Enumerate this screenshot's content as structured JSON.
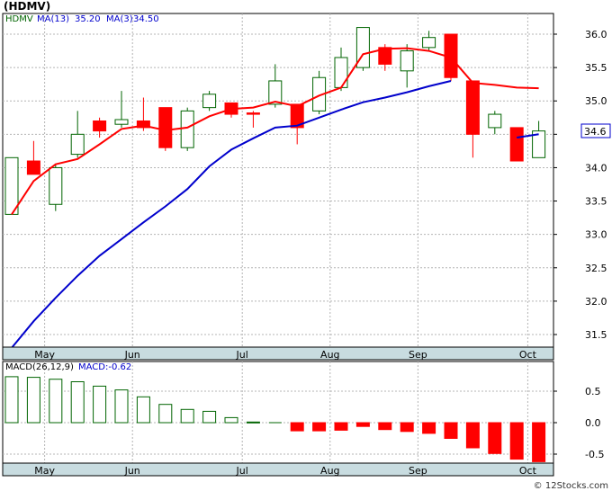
{
  "header": {
    "title": "(HDMV)"
  },
  "footer": {
    "credit": "© 12Stocks.com"
  },
  "colors": {
    "up": "#006400",
    "down": "#ff0000",
    "ma_slow": "#0000cc",
    "ma_fast": "#ff0000",
    "grid": "#b4b4b4",
    "axis_bar": "#c8dce0",
    "ticker": "#006400",
    "legend_blue": "#0000cc"
  },
  "chart_data": [
    {
      "type": "candlestick",
      "title": "(HDMV)",
      "legend": {
        "ticker": "HDMV",
        "ma_slow_label": "MA(13)",
        "ma_slow_value": "35.20",
        "ma_fast_label": "MA(3)",
        "ma_fast_value": "34.50"
      },
      "last_price_label": "34.6",
      "ylim": [
        31.2,
        36.4
      ],
      "yticks": [
        "31.5",
        "32.0",
        "32.5",
        "33.0",
        "33.5",
        "34.0",
        "34.5",
        "35.0",
        "35.5",
        "36.0"
      ],
      "month_labels": [
        "May",
        "Jun",
        "Jul",
        "Aug",
        "Sep",
        "Oct"
      ],
      "month_positions": [
        1.5,
        5.5,
        10.5,
        14.5,
        18.5,
        23.5
      ],
      "candles": [
        {
          "i": 0,
          "o": 33.3,
          "h": 34.15,
          "l": 33.3,
          "c": 34.15
        },
        {
          "i": 1,
          "o": 34.1,
          "h": 34.4,
          "l": 33.95,
          "c": 33.9
        },
        {
          "i": 2,
          "o": 33.45,
          "h": 34.05,
          "l": 33.35,
          "c": 34.0
        },
        {
          "i": 3,
          "o": 34.2,
          "h": 34.85,
          "l": 34.15,
          "c": 34.5
        },
        {
          "i": 4,
          "o": 34.7,
          "h": 34.75,
          "l": 34.45,
          "c": 34.55
        },
        {
          "i": 5,
          "o": 34.65,
          "h": 35.15,
          "l": 34.6,
          "c": 34.72
        },
        {
          "i": 6,
          "o": 34.7,
          "h": 35.05,
          "l": 34.55,
          "c": 34.6
        },
        {
          "i": 7,
          "o": 34.9,
          "h": 34.9,
          "l": 34.25,
          "c": 34.3
        },
        {
          "i": 8,
          "o": 34.3,
          "h": 34.9,
          "l": 34.25,
          "c": 34.85
        },
        {
          "i": 9,
          "o": 34.9,
          "h": 35.15,
          "l": 34.85,
          "c": 35.1
        },
        {
          "i": 10,
          "o": 34.97,
          "h": 34.97,
          "l": 34.75,
          "c": 34.8
        },
        {
          "i": 11,
          "o": 34.82,
          "h": 34.85,
          "l": 34.6,
          "c": 34.8
        },
        {
          "i": 12,
          "o": 34.95,
          "h": 35.55,
          "l": 34.9,
          "c": 35.3
        },
        {
          "i": 13,
          "o": 34.95,
          "h": 34.95,
          "l": 34.35,
          "c": 34.6
        },
        {
          "i": 14,
          "o": 34.85,
          "h": 35.45,
          "l": 34.8,
          "c": 35.35
        },
        {
          "i": 15,
          "o": 35.2,
          "h": 35.8,
          "l": 35.15,
          "c": 35.65
        },
        {
          "i": 16,
          "o": 35.5,
          "h": 36.1,
          "l": 35.45,
          "c": 36.1
        },
        {
          "i": 17,
          "o": 35.8,
          "h": 35.85,
          "l": 35.45,
          "c": 35.55
        },
        {
          "i": 18,
          "o": 35.45,
          "h": 35.85,
          "l": 35.2,
          "c": 35.75
        },
        {
          "i": 19,
          "o": 35.8,
          "h": 36.05,
          "l": 35.75,
          "c": 35.95
        },
        {
          "i": 20,
          "o": 36.0,
          "h": 36.0,
          "l": 35.3,
          "c": 35.35
        },
        {
          "i": 21,
          "o": 35.3,
          "h": 35.3,
          "l": 34.15,
          "c": 34.5
        },
        {
          "i": 22,
          "o": 34.6,
          "h": 34.85,
          "l": 34.5,
          "c": 34.8
        },
        {
          "i": 23,
          "o": 34.6,
          "h": 34.6,
          "l": 34.1,
          "c": 34.1
        },
        {
          "i": 24,
          "o": 34.15,
          "h": 34.7,
          "l": 34.15,
          "c": 34.55
        }
      ],
      "ma_slow": [
        {
          "i": 0,
          "v": 31.3
        },
        {
          "i": 1,
          "v": 31.7
        },
        {
          "i": 2,
          "v": 32.05
        },
        {
          "i": 3,
          "v": 32.38
        },
        {
          "i": 4,
          "v": 32.68
        },
        {
          "i": 5,
          "v": 32.93
        },
        {
          "i": 6,
          "v": 33.18
        },
        {
          "i": 7,
          "v": 33.42
        },
        {
          "i": 8,
          "v": 33.68
        },
        {
          "i": 9,
          "v": 34.02
        },
        {
          "i": 10,
          "v": 34.27
        },
        {
          "i": 11,
          "v": 34.44
        },
        {
          "i": 12,
          "v": 34.6
        },
        {
          "i": 13,
          "v": 34.63
        },
        {
          "i": 14,
          "v": 34.75
        },
        {
          "i": 15,
          "v": 34.87
        },
        {
          "i": 16,
          "v": 34.98
        },
        {
          "i": 17,
          "v": 35.05
        },
        {
          "i": 18,
          "v": 35.13
        },
        {
          "i": 19,
          "v": 35.22
        },
        {
          "i": 20,
          "v": 35.3
        }
      ],
      "ma_fast": [
        {
          "i": 0,
          "v": 33.3
        },
        {
          "i": 1,
          "v": 33.8
        },
        {
          "i": 2,
          "v": 34.05
        },
        {
          "i": 3,
          "v": 34.13
        },
        {
          "i": 4,
          "v": 34.35
        },
        {
          "i": 5,
          "v": 34.58
        },
        {
          "i": 6,
          "v": 34.63
        },
        {
          "i": 7,
          "v": 34.56
        },
        {
          "i": 8,
          "v": 34.6
        },
        {
          "i": 9,
          "v": 34.77
        },
        {
          "i": 10,
          "v": 34.88
        },
        {
          "i": 11,
          "v": 34.9
        },
        {
          "i": 12,
          "v": 34.99
        },
        {
          "i": 13,
          "v": 34.92
        },
        {
          "i": 14,
          "v": 35.08
        },
        {
          "i": 15,
          "v": 35.2
        },
        {
          "i": 16,
          "v": 35.7
        },
        {
          "i": 17,
          "v": 35.78
        },
        {
          "i": 18,
          "v": 35.79
        },
        {
          "i": 19,
          "v": 35.75
        },
        {
          "i": 20,
          "v": 35.65
        },
        {
          "i": 21,
          "v": 35.27
        },
        {
          "i": 22,
          "v": 35.24
        },
        {
          "i": 23,
          "v": 35.2
        },
        {
          "i": 24,
          "v": 35.19
        }
      ],
      "ma_tail": [
        {
          "i": 23,
          "v": 34.45
        },
        {
          "i": 24,
          "v": 34.5
        }
      ]
    },
    {
      "type": "bar",
      "title": "MACD(26,12,9)",
      "legend": {
        "label": "MACD(26,12,9)",
        "value_label": "MACD:-0.62"
      },
      "ylim": [
        -0.62,
        0.73
      ],
      "yticks": [
        "0.5",
        "0.0",
        "-0.5"
      ],
      "month_labels": [
        "May",
        "Jun",
        "Jul",
        "Aug",
        "Sep",
        "Oct"
      ],
      "values": [
        0.73,
        0.72,
        0.69,
        0.65,
        0.58,
        0.52,
        0.41,
        0.29,
        0.21,
        0.18,
        0.08,
        0.01,
        0.0,
        -0.13,
        -0.13,
        -0.12,
        -0.06,
        -0.11,
        -0.14,
        -0.17,
        -0.25,
        -0.4,
        -0.49,
        -0.58,
        -0.62
      ]
    }
  ]
}
